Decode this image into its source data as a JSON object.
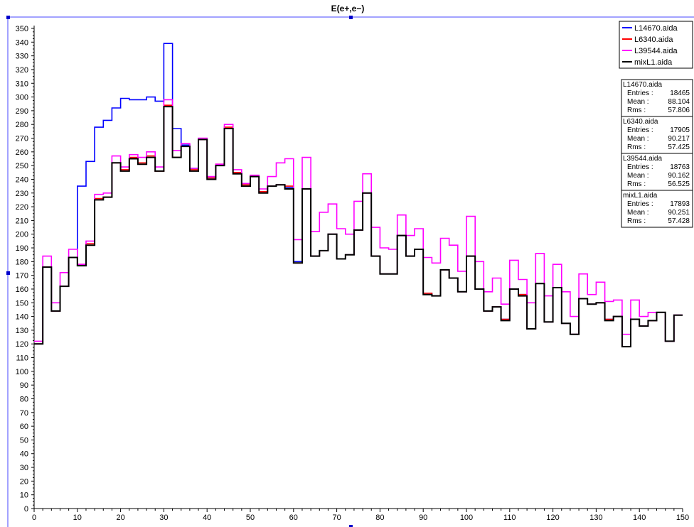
{
  "chart_data": {
    "type": "line",
    "step": true,
    "title": "E(e+,e−)",
    "xlabel": "",
    "ylabel": "",
    "xlim": [
      0,
      150
    ],
    "ylim": [
      0,
      350
    ],
    "x_ticks": [
      0,
      10,
      20,
      30,
      40,
      50,
      60,
      70,
      80,
      90,
      100,
      110,
      120,
      130,
      140,
      150
    ],
    "y_ticks": [
      0,
      10,
      20,
      30,
      40,
      50,
      60,
      70,
      80,
      90,
      100,
      110,
      120,
      130,
      140,
      150,
      160,
      170,
      180,
      190,
      200,
      210,
      220,
      230,
      240,
      250,
      260,
      270,
      280,
      290,
      300,
      310,
      320,
      330,
      340,
      350
    ],
    "bin_width": 2,
    "x_start": 0,
    "grid": false,
    "legend_position": "top-right",
    "series": [
      {
        "name": "L14670.aida",
        "color": "#0000ff",
        "values": [
          120,
          176,
          144,
          162,
          183,
          235,
          253,
          278,
          283,
          292,
          299,
          298,
          298,
          300,
          297,
          339,
          277,
          265,
          248,
          269,
          241,
          250,
          277,
          245,
          236,
          242,
          231,
          235,
          236,
          234,
          180,
          233,
          184,
          188,
          200,
          182,
          185,
          203,
          230,
          184,
          171,
          171,
          199,
          184,
          189,
          157,
          155,
          174,
          168,
          158,
          184,
          160,
          144,
          147,
          138,
          160,
          156,
          131,
          164,
          136,
          161,
          135,
          127,
          153,
          149,
          150,
          138,
          140,
          118,
          138,
          133,
          137,
          143,
          122,
          141
        ]
      },
      {
        "name": "L6340.aida",
        "color": "#ff0000",
        "values": [
          120,
          176,
          144,
          162,
          183,
          178,
          193,
          226,
          227,
          252,
          247,
          256,
          252,
          257,
          246,
          294,
          256,
          264,
          247,
          269,
          241,
          251,
          278,
          245,
          236,
          242,
          231,
          235,
          236,
          235,
          179,
          233,
          184,
          188,
          200,
          182,
          185,
          203,
          230,
          184,
          171,
          171,
          199,
          184,
          189,
          157,
          155,
          174,
          168,
          158,
          184,
          160,
          144,
          147,
          138,
          160,
          156,
          131,
          164,
          136,
          161,
          135,
          127,
          153,
          149,
          150,
          138,
          140,
          118,
          138,
          133,
          137,
          143,
          122,
          141
        ]
      },
      {
        "name": "L39544.aida",
        "color": "#ff00ff",
        "values": [
          122,
          184,
          150,
          172,
          189,
          178,
          195,
          229,
          230,
          257,
          249,
          258,
          256,
          260,
          249,
          298,
          261,
          266,
          248,
          270,
          242,
          251,
          280,
          247,
          237,
          243,
          233,
          242,
          252,
          255,
          196,
          256,
          202,
          216,
          222,
          204,
          200,
          224,
          244,
          205,
          190,
          189,
          214,
          199,
          204,
          183,
          179,
          197,
          192,
          173,
          213,
          180,
          158,
          168,
          149,
          181,
          167,
          150,
          186,
          155,
          178,
          158,
          140,
          171,
          156,
          165,
          151,
          152,
          127,
          152,
          140,
          143,
          143,
          122,
          141
        ]
      },
      {
        "name": "mixL1.aida",
        "color": "#000000",
        "values": [
          120,
          176,
          144,
          162,
          183,
          177,
          192,
          225,
          227,
          252,
          246,
          255,
          251,
          256,
          246,
          293,
          256,
          264,
          246,
          269,
          240,
          250,
          277,
          244,
          235,
          242,
          230,
          235,
          236,
          233,
          179,
          233,
          184,
          188,
          200,
          182,
          185,
          203,
          230,
          184,
          171,
          171,
          199,
          184,
          189,
          156,
          155,
          174,
          168,
          158,
          184,
          160,
          144,
          147,
          137,
          160,
          155,
          131,
          164,
          136,
          161,
          135,
          127,
          153,
          149,
          150,
          137,
          140,
          118,
          138,
          133,
          137,
          143,
          122,
          141
        ]
      }
    ],
    "stats": [
      {
        "name": "L14670.aida",
        "entries_label": "Entries :",
        "entries": "18465",
        "mean_label": "Mean :",
        "mean": "88.104",
        "rms_label": "Rms :",
        "rms": "57.806"
      },
      {
        "name": "L6340.aida",
        "entries_label": "Entries :",
        "entries": "17905",
        "mean_label": "Mean :",
        "mean": "90.217",
        "rms_label": "Rms :",
        "rms": "57.425"
      },
      {
        "name": "L39544.aida",
        "entries_label": "Entries :",
        "entries": "18763",
        "mean_label": "Mean :",
        "mean": "90.162",
        "rms_label": "Rms :",
        "rms": "56.525"
      },
      {
        "name": "mixL1.aida",
        "entries_label": "Entries :",
        "entries": "17893",
        "mean_label": "Mean :",
        "mean": "90.251",
        "rms_label": "Rms :",
        "rms": "57.428"
      }
    ]
  }
}
